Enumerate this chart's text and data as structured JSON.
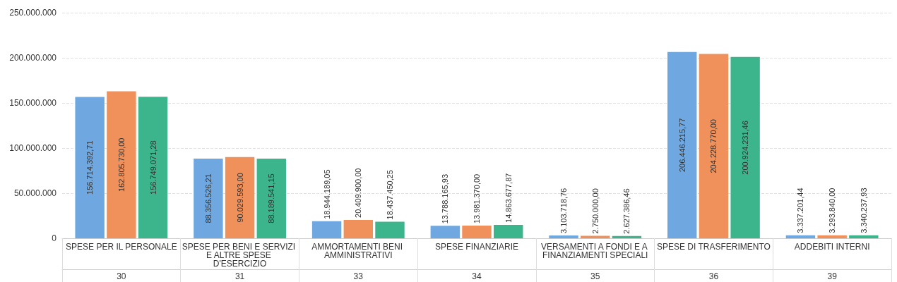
{
  "chart_data": {
    "type": "bar",
    "categories": [
      "SPESE PER IL PERSONALE",
      "SPESE PER BENI E SERVIZI E ALTRE SPESE D'ESERCIZIO",
      "AMMORTAMENTI BENI AMMINISTRATIVI",
      "SPESE FINANZIARIE",
      "VERSAMENTI A FONDI E A FINANZIAMENTI SPECIALI",
      "SPESE DI TRASFERIMENTO",
      "ADDEBITI INTERNI"
    ],
    "annotations": [
      "30",
      "31",
      "33",
      "34",
      "35",
      "36",
      "39"
    ],
    "series": [
      {
        "color": "#6fa8e0",
        "values": [
          156714392.71,
          88356526.21,
          18944189.05,
          13788165.93,
          3103718.76,
          206446215.77,
          3337201.44
        ],
        "value_labels": [
          "156.714.392,71",
          "88.356.526,21",
          "18.944.189,05",
          "13.788.165,93",
          "3.103.718,76",
          "206.446.215,77",
          "3.337.201,44"
        ]
      },
      {
        "color": "#f0905a",
        "values": [
          162805730.0,
          90029593.0,
          20409900.0,
          13981370.0,
          2750000.0,
          204228770.0,
          3293840.0
        ],
        "value_labels": [
          "162.805.730,00",
          "90.029.593,00",
          "20.409.900,00",
          "13.981.370,00",
          "2.750.000,00",
          "204.228.770,00",
          "3.293.840,00"
        ]
      },
      {
        "color": "#3cb58c",
        "values": [
          156749071.28,
          88189541.15,
          18437450.25,
          14863677.87,
          2627386.46,
          200924231.46,
          3340237.93
        ],
        "value_labels": [
          "156.749.071,28",
          "88.189.541,15",
          "18.437.450,25",
          "14.863.677,87",
          "2.627.386,46",
          "200.924.231,46",
          "3.340.237,93"
        ]
      }
    ],
    "ylim": [
      0,
      250000000
    ],
    "yticks": [
      0,
      {
        "value": 50000000,
        "label": "50.000.000"
      },
      {
        "value": 100000000,
        "label": "100.000.000"
      },
      {
        "value": 150000000,
        "label": "150.000.000"
      },
      {
        "value": 200000000,
        "label": "200.000.000"
      },
      {
        "value": 250000000,
        "label": "250.000.000"
      }
    ],
    "grid": "y"
  }
}
